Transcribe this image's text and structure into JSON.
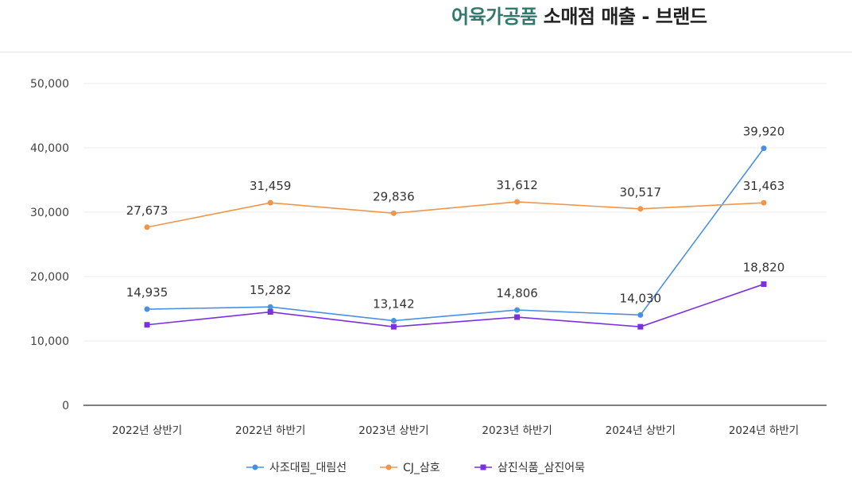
{
  "title": {
    "accent_text": "어육가공품",
    "rest_text": " 소매점 매출 - 브랜드",
    "accent_color": "#2e7b6b"
  },
  "chart_data": {
    "type": "line",
    "title": "어육가공품 소매점 매출 - 브랜드",
    "xlabel": "",
    "ylabel": "",
    "categories": [
      "2022년 상반기",
      "2022년 하반기",
      "2023년 상반기",
      "2023년 하반기",
      "2024년 상반기",
      "2024년 하반기"
    ],
    "ylim": [
      0,
      50000
    ],
    "yticks": [
      0,
      10000,
      20000,
      30000,
      40000,
      50000
    ],
    "ytick_labels": [
      "0",
      "10,000",
      "20,000",
      "30,000",
      "40,000",
      "50,000"
    ],
    "grid": true,
    "legend_position": "bottom",
    "series": [
      {
        "name": "사조대림_대림선",
        "color": "#4a90e2",
        "marker": "circle",
        "values": [
          14935,
          15282,
          13142,
          14806,
          14030,
          39920
        ],
        "labels": [
          "14,935",
          "15,282",
          "13,142",
          "14,806",
          "14,030",
          "39,920"
        ]
      },
      {
        "name": "CJ_삼호",
        "color": "#f0954a",
        "marker": "circle",
        "values": [
          27673,
          31459,
          29836,
          31612,
          30517,
          31463
        ],
        "labels": [
          "27,673",
          "31,459",
          "29,836",
          "31,612",
          "30,517",
          "31,463"
        ]
      },
      {
        "name": "삼진식품_삼진어묵",
        "color": "#7b2fe0",
        "marker": "square",
        "values": [
          12500,
          14500,
          12200,
          13700,
          12200,
          18820
        ],
        "labels": [
          "",
          "",
          "",
          "",
          "",
          "18,820"
        ]
      }
    ]
  }
}
